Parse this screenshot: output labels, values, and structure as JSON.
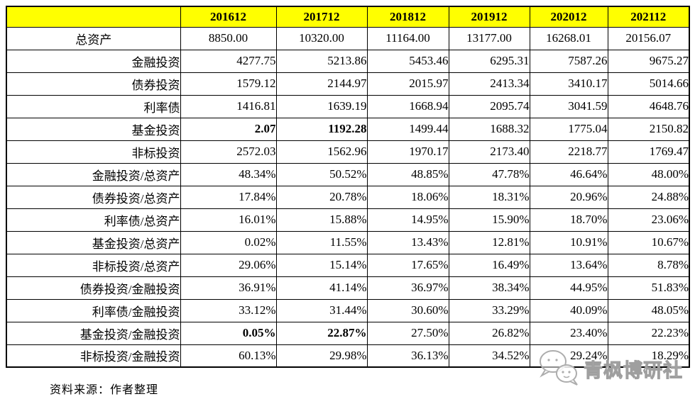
{
  "colors": {
    "header_bg": "#FFFF00",
    "highlight_red": "#FF0000",
    "border": "#000000",
    "watermark_gray": "#A5A5A5"
  },
  "chart_data": {
    "type": "table",
    "columns": [
      "201612",
      "201712",
      "201812",
      "201912",
      "202012",
      "202112"
    ],
    "rows": [
      {
        "label": "总资产",
        "center": true,
        "values": [
          "8850.00",
          "10320.00",
          "11164.00",
          "13177.00",
          "16268.01",
          "20156.07"
        ]
      },
      {
        "label": "金融投资",
        "values": [
          "4277.75",
          "5213.86",
          "5453.46",
          "6295.31",
          "7587.26",
          "9675.27"
        ]
      },
      {
        "label": "债券投资",
        "values": [
          "1579.12",
          "2144.97",
          "2015.97",
          "2413.34",
          "3410.17",
          "5014.66"
        ]
      },
      {
        "label": "利率债",
        "values": [
          "1416.81",
          "1639.19",
          "1668.94",
          "2095.74",
          "3041.59",
          "4648.76"
        ]
      },
      {
        "label": "基金投资",
        "red": [
          0,
          1
        ],
        "values": [
          "2.07",
          "1192.28",
          "1499.44",
          "1688.32",
          "1775.04",
          "2150.82"
        ]
      },
      {
        "label": "非标投资",
        "values": [
          "2572.03",
          "1562.96",
          "1970.17",
          "2173.40",
          "2218.77",
          "1769.47"
        ]
      },
      {
        "label": "金融投资/总资产",
        "values": [
          "48.34%",
          "50.52%",
          "48.85%",
          "47.78%",
          "46.64%",
          "48.00%"
        ]
      },
      {
        "label": "债券投资/总资产",
        "values": [
          "17.84%",
          "20.78%",
          "18.06%",
          "18.31%",
          "20.96%",
          "24.88%"
        ]
      },
      {
        "label": "利率债/总资产",
        "values": [
          "16.01%",
          "15.88%",
          "14.95%",
          "15.90%",
          "18.70%",
          "23.06%"
        ]
      },
      {
        "label": "基金投资/总资产",
        "values": [
          "0.02%",
          "11.55%",
          "13.43%",
          "12.81%",
          "10.91%",
          "10.67%"
        ]
      },
      {
        "label": "非标投资/总资产",
        "values": [
          "29.06%",
          "15.14%",
          "17.65%",
          "16.49%",
          "13.64%",
          "8.78%"
        ]
      },
      {
        "label": "债券投资/金融投资",
        "values": [
          "36.91%",
          "41.14%",
          "36.97%",
          "38.34%",
          "44.95%",
          "51.83%"
        ]
      },
      {
        "label": "利率债/金融投资",
        "values": [
          "33.12%",
          "31.44%",
          "30.60%",
          "33.29%",
          "40.09%",
          "48.05%"
        ]
      },
      {
        "label": "基金投资/金融投资",
        "red": [
          0,
          1
        ],
        "values": [
          "0.05%",
          "22.87%",
          "27.50%",
          "26.82%",
          "23.40%",
          "22.23%"
        ]
      },
      {
        "label": "非标投资/金融投资",
        "values": [
          "60.13%",
          "29.98%",
          "36.13%",
          "34.52%",
          "29.24%",
          "18.29%"
        ]
      }
    ]
  },
  "footer": {
    "source_note": "资料来源：作者整理"
  },
  "watermark": {
    "text": "青枫博研社",
    "logo": "chat-bubbles-logo"
  }
}
